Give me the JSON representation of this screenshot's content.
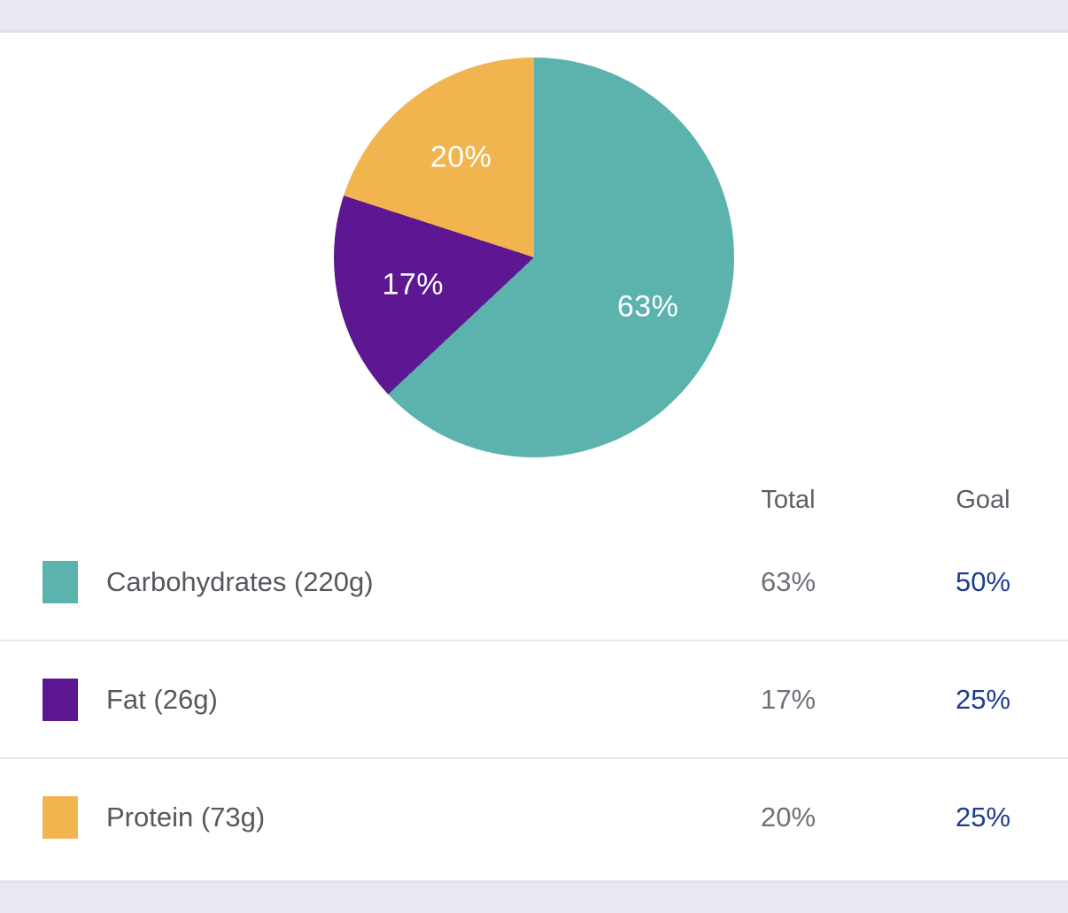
{
  "chrome": {
    "bar_color": "#e9e8f2"
  },
  "chart_data": {
    "type": "pie",
    "title": "",
    "categories": [
      "Carbohydrates",
      "Fat",
      "Protein"
    ],
    "values": [
      63,
      17,
      20
    ],
    "slice_labels": [
      "63%",
      "17%",
      "20%"
    ],
    "colors": [
      "#5cb3ad",
      "#5d1792",
      "#f2b44f"
    ],
    "start_angle_deg": 0,
    "direction": "clockwise",
    "label_color": "#ffffff",
    "legend_position": "table-below"
  },
  "table": {
    "headers": {
      "total": "Total",
      "goal": "Goal"
    },
    "rows": [
      {
        "label": "Carbohydrates (220g)",
        "total": "63%",
        "goal": "50%",
        "swatch": "#5cb3ad"
      },
      {
        "label": "Fat (26g)",
        "total": "17%",
        "goal": "25%",
        "swatch": "#5d1792"
      },
      {
        "label": "Protein (73g)",
        "total": "20%",
        "goal": "25%",
        "swatch": "#f2b44f"
      }
    ]
  },
  "colors": {
    "goal_text": "#1e3d8f",
    "total_text": "#6d7278",
    "label_text": "#54585d",
    "header_text": "#5b5f64",
    "divider": "#e8e8e8"
  }
}
